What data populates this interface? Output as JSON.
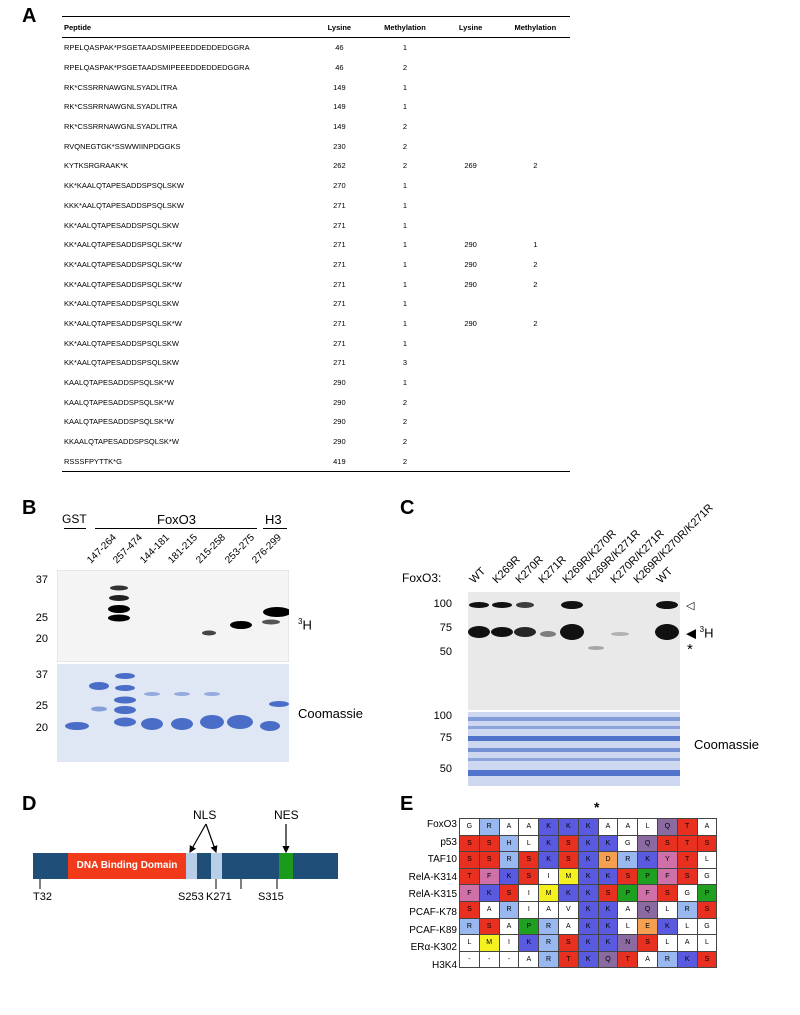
{
  "panels": {
    "a": "A",
    "b": "B",
    "c": "C",
    "d": "D",
    "e": "E"
  },
  "tableA": {
    "headers": [
      "Peptide",
      "Lysine",
      "Methylation",
      "Lysine",
      "Methylation"
    ],
    "rows": [
      [
        "RPELQASPAK*PSGETAADSMIPEEEDDEDDEDGGRA",
        "46",
        "1",
        "",
        ""
      ],
      [
        "RPELQASPAK*PSGETAADSMIPEEEDDEDDEDGGRA",
        "46",
        "2",
        "",
        ""
      ],
      [
        "RK*CSSRRNAWGNLSYADLITRA",
        "149",
        "1",
        "",
        ""
      ],
      [
        "RK*CSSRRNAWGNLSYADLITRA",
        "149",
        "1",
        "",
        ""
      ],
      [
        "RK*CSSRRNAWGNLSYADLITRA",
        "149",
        "2",
        "",
        ""
      ],
      [
        "RVQNEGTGK*SSWWIINPDGGKS",
        "230",
        "2",
        "",
        ""
      ],
      [
        "KYTKSRGRAAK*K",
        "262",
        "2",
        "269",
        "2"
      ],
      [
        "KK*KAALQTAPESADDSPSQLSKW",
        "270",
        "1",
        "",
        ""
      ],
      [
        "KKK*AALQTAPESADDSPSQLSKW",
        "271",
        "1",
        "",
        ""
      ],
      [
        "KK*AALQTAPESADDSPSQLSKW",
        "271",
        "1",
        "",
        ""
      ],
      [
        "KK*AALQTAPESADDSPSQLSK*W",
        "271",
        "1",
        "290",
        "1"
      ],
      [
        "KK*AALQTAPESADDSPSQLSK*W",
        "271",
        "1",
        "290",
        "2"
      ],
      [
        "KK*AALQTAPESADDSPSQLSK*W",
        "271",
        "1",
        "290",
        "2"
      ],
      [
        "KK*AALQTAPESADDSPSQLSKW",
        "271",
        "1",
        "",
        ""
      ],
      [
        "KK*AALQTAPESADDSPSQLSK*W",
        "271",
        "1",
        "290",
        "2"
      ],
      [
        "KK*AALQTAPESADDSPSQLSKW",
        "271",
        "1",
        "",
        ""
      ],
      [
        "KK*AALQTAPESADDSPSQLSKW",
        "271",
        "3",
        "",
        ""
      ],
      [
        "KAALQTAPESADDSPSQLSK*W",
        "290",
        "1",
        "",
        ""
      ],
      [
        "KAALQTAPESADDSPSQLSK*W",
        "290",
        "2",
        "",
        ""
      ],
      [
        "KAALQTAPESADDSPSQLSK*W",
        "290",
        "2",
        "",
        ""
      ],
      [
        "KKAALQTAPESADDSPSQLSK*W",
        "290",
        "2",
        "",
        ""
      ],
      [
        "RSSSFPYTTK*G",
        "419",
        "2",
        "",
        ""
      ]
    ]
  },
  "panelB": {
    "groups": {
      "gst": "GST",
      "foxo3": "FoxO3",
      "h3": "H3"
    },
    "lanes": [
      "147-264",
      "257-474",
      "144-181",
      "181-215",
      "215-258",
      "253-275",
      "276-299"
    ],
    "mw_top": [
      "37",
      "25",
      "20"
    ],
    "mw_bottom": [
      "37",
      "25",
      "20"
    ],
    "label_top": "H",
    "label_top_sup": "3",
    "label_bottom": "Coomassie"
  },
  "panelC": {
    "row_label": "FoxO3:",
    "lanes": [
      "WT",
      "K269R",
      "K270R",
      "K271R",
      "K269R/K270R",
      "K269R/K271R",
      "K270R/K271R",
      "K269R/K270R/K271R",
      "WT"
    ],
    "mw_top": [
      "100",
      "75",
      "50"
    ],
    "mw_bottom": [
      "100",
      "75",
      "50"
    ],
    "label_open": "◁",
    "label_filled": "◀",
    "label_h_sup": "3",
    "label_h": "H",
    "label_star": "*",
    "label_bottom": "Coomassie"
  },
  "panelD": {
    "domain": "DNA Binding Domain",
    "nls": "NLS",
    "nes": "NES",
    "sites": [
      "T32",
      "S253",
      "K271",
      "S315"
    ]
  },
  "panelE": {
    "star": "*",
    "colors": {
      "r": "#e83020",
      "b": "#5a5ae0",
      "lb": "#9ab8f0",
      "p": "#d070a8",
      "y": "#f5f020",
      "o": "#f5a050",
      "g": "#20a020",
      "m": "#8a6aa0",
      "w": "#ffffff"
    },
    "rows": [
      {
        "name": "FoxO3",
        "cells": [
          [
            "G",
            "w"
          ],
          [
            "R",
            "lb"
          ],
          [
            "A",
            "w"
          ],
          [
            "A",
            "w"
          ],
          [
            "K",
            "b"
          ],
          [
            "K",
            "b"
          ],
          [
            "K",
            "b"
          ],
          [
            "A",
            "w"
          ],
          [
            "A",
            "w"
          ],
          [
            "L",
            "w"
          ],
          [
            "Q",
            "m"
          ],
          [
            "T",
            "r"
          ],
          [
            "A",
            "w"
          ]
        ]
      },
      {
        "name": "p53",
        "cells": [
          [
            "S",
            "r"
          ],
          [
            "S",
            "r"
          ],
          [
            "H",
            "lb"
          ],
          [
            "L",
            "w"
          ],
          [
            "K",
            "b"
          ],
          [
            "S",
            "r"
          ],
          [
            "K",
            "b"
          ],
          [
            "K",
            "b"
          ],
          [
            "G",
            "w"
          ],
          [
            "Q",
            "m"
          ],
          [
            "S",
            "r"
          ],
          [
            "T",
            "r"
          ],
          [
            "S",
            "r"
          ]
        ]
      },
      {
        "name": "TAF10",
        "cells": [
          [
            "S",
            "r"
          ],
          [
            "S",
            "r"
          ],
          [
            "R",
            "lb"
          ],
          [
            "S",
            "r"
          ],
          [
            "K",
            "b"
          ],
          [
            "S",
            "r"
          ],
          [
            "K",
            "b"
          ],
          [
            "D",
            "o"
          ],
          [
            "R",
            "lb"
          ],
          [
            "K",
            "b"
          ],
          [
            "Y",
            "p"
          ],
          [
            "T",
            "r"
          ],
          [
            "L",
            "w"
          ]
        ]
      },
      {
        "name": "RelA-K314",
        "cells": [
          [
            "T",
            "r"
          ],
          [
            "F",
            "p"
          ],
          [
            "K",
            "b"
          ],
          [
            "S",
            "r"
          ],
          [
            "I",
            "w"
          ],
          [
            "M",
            "y"
          ],
          [
            "K",
            "b"
          ],
          [
            "K",
            "b"
          ],
          [
            "S",
            "r"
          ],
          [
            "P",
            "g"
          ],
          [
            "F",
            "p"
          ],
          [
            "S",
            "r"
          ],
          [
            "G",
            "w"
          ]
        ]
      },
      {
        "name": "RelA-K315",
        "cells": [
          [
            "F",
            "p"
          ],
          [
            "K",
            "b"
          ],
          [
            "S",
            "r"
          ],
          [
            "I",
            "w"
          ],
          [
            "M",
            "y"
          ],
          [
            "K",
            "b"
          ],
          [
            "K",
            "b"
          ],
          [
            "S",
            "r"
          ],
          [
            "P",
            "g"
          ],
          [
            "F",
            "p"
          ],
          [
            "S",
            "r"
          ],
          [
            "G",
            "w"
          ],
          [
            "P",
            "g"
          ]
        ]
      },
      {
        "name": "PCAF-K78",
        "cells": [
          [
            "S",
            "r"
          ],
          [
            "A",
            "w"
          ],
          [
            "R",
            "lb"
          ],
          [
            "I",
            "w"
          ],
          [
            "A",
            "w"
          ],
          [
            "V",
            "w"
          ],
          [
            "K",
            "b"
          ],
          [
            "K",
            "b"
          ],
          [
            "A",
            "w"
          ],
          [
            "Q",
            "m"
          ],
          [
            "L",
            "w"
          ],
          [
            "R",
            "lb"
          ],
          [
            "S",
            "r"
          ]
        ]
      },
      {
        "name": "PCAF-K89",
        "cells": [
          [
            "R",
            "lb"
          ],
          [
            "S",
            "r"
          ],
          [
            "A",
            "w"
          ],
          [
            "P",
            "g"
          ],
          [
            "R",
            "lb"
          ],
          [
            "A",
            "w"
          ],
          [
            "K",
            "b"
          ],
          [
            "K",
            "b"
          ],
          [
            "L",
            "w"
          ],
          [
            "E",
            "o"
          ],
          [
            "K",
            "b"
          ],
          [
            "L",
            "w"
          ],
          [
            "G",
            "w"
          ]
        ]
      },
      {
        "name": "ERα-K302",
        "cells": [
          [
            "L",
            "w"
          ],
          [
            "M",
            "y"
          ],
          [
            "I",
            "w"
          ],
          [
            "K",
            "b"
          ],
          [
            "R",
            "lb"
          ],
          [
            "S",
            "r"
          ],
          [
            "K",
            "b"
          ],
          [
            "K",
            "b"
          ],
          [
            "N",
            "m"
          ],
          [
            "S",
            "r"
          ],
          [
            "L",
            "w"
          ],
          [
            "A",
            "w"
          ],
          [
            "L",
            "w"
          ]
        ]
      },
      {
        "name": "H3K4",
        "cells": [
          [
            "-",
            "w"
          ],
          [
            "-",
            "w"
          ],
          [
            "-",
            "w"
          ],
          [
            "A",
            "w"
          ],
          [
            "R",
            "lb"
          ],
          [
            "T",
            "r"
          ],
          [
            "K",
            "b"
          ],
          [
            "Q",
            "m"
          ],
          [
            "T",
            "r"
          ],
          [
            "A",
            "w"
          ],
          [
            "R",
            "lb"
          ],
          [
            "K",
            "b"
          ],
          [
            "S",
            "r"
          ]
        ]
      }
    ]
  }
}
